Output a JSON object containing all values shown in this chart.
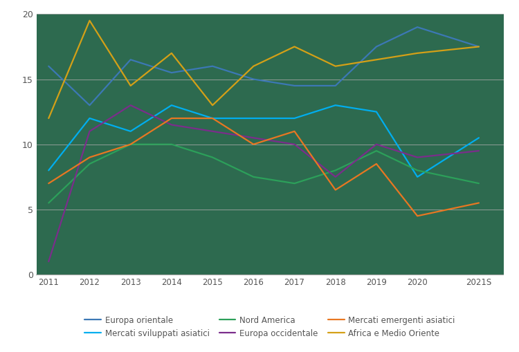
{
  "years_numeric": [
    2011,
    2012,
    2013,
    2014,
    2015,
    2016,
    2017,
    2018,
    2019,
    2020,
    2021.5
  ],
  "series": [
    {
      "name": "Europa orientale",
      "values": [
        16,
        13,
        16.5,
        15.5,
        16,
        15,
        14.5,
        14.5,
        17.5,
        19,
        17.5
      ],
      "color": "#3C78B5"
    },
    {
      "name": "Mercati sviluppati asiatici",
      "values": [
        8,
        12,
        11,
        13,
        12,
        12,
        12,
        13,
        12.5,
        7.5,
        10.5
      ],
      "color": "#00AEEF"
    },
    {
      "name": "Nord America",
      "values": [
        5.5,
        8.5,
        10,
        10,
        9,
        7.5,
        7,
        8,
        9.5,
        8,
        7
      ],
      "color": "#2CA05A"
    },
    {
      "name": "Europa occidentale",
      "values": [
        1,
        11,
        13,
        11.5,
        11,
        10.5,
        10,
        7.5,
        10,
        9,
        9.5
      ],
      "color": "#7B2D8B"
    },
    {
      "name": "Mercati emergenti asiatici",
      "values": [
        7,
        9,
        10,
        12,
        12,
        10,
        11,
        6.5,
        8.5,
        4.5,
        5.5
      ],
      "color": "#E87722"
    },
    {
      "name": "Africa e Medio Oriente",
      "values": [
        12,
        19.5,
        14.5,
        17,
        13,
        16,
        17.5,
        16,
        16.5,
        17,
        17.5
      ],
      "color": "#D4A017"
    }
  ],
  "legend_order": [
    0,
    1,
    2,
    3,
    4,
    5
  ],
  "xtick_labels": [
    "2011",
    "2012",
    "2013",
    "2014",
    "2015",
    "2016",
    "2017",
    "2018",
    "2019",
    "2020",
    "2021S"
  ],
  "yticks": [
    0,
    5,
    10,
    15,
    20
  ],
  "ylim": [
    0,
    20
  ],
  "plot_bg_color": "#2D6A4F",
  "fig_bg_color": "#FFFFFF",
  "grid_color": "#AAAAAA",
  "tick_label_color": "#555555",
  "figsize": [
    7.5,
    5.09
  ],
  "dpi": 100
}
